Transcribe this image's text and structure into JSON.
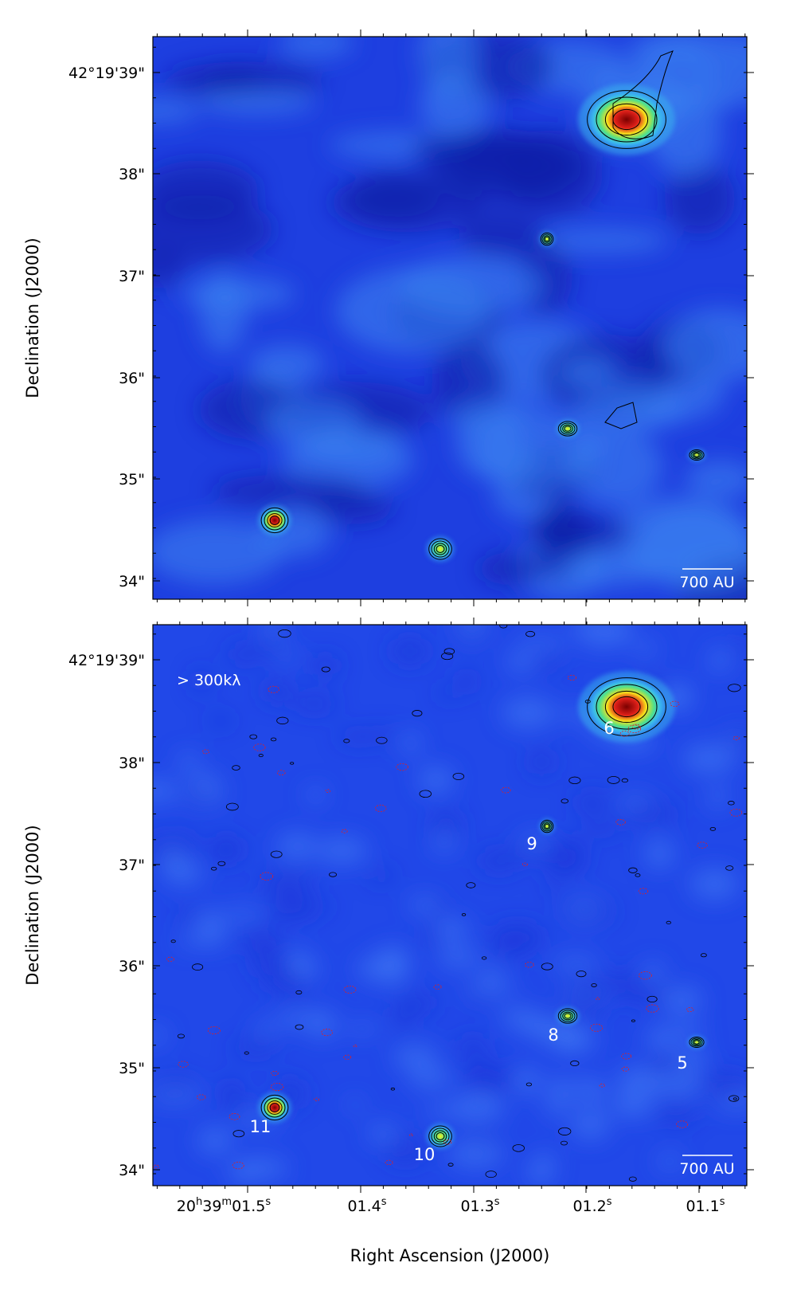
{
  "figure": {
    "y_label": "Declination (J2000)",
    "x_label": "Right Ascension (J2000)",
    "xtick_labels": [
      [
        [
          "20",
          "h"
        ],
        [
          "39",
          "m"
        ],
        [
          "01.5",
          "s"
        ]
      ],
      [
        [
          "01.4",
          "s"
        ]
      ],
      [
        [
          "01.3",
          "s"
        ]
      ],
      [
        [
          "01.2",
          "s"
        ]
      ],
      [
        [
          "01.1",
          "s"
        ]
      ]
    ],
    "panels": [
      {
        "ytick_labels": [
          "42°19'39\"",
          "38\"",
          "37\"",
          "36\"",
          "35\"",
          "34\""
        ],
        "scale_bar": "700 AU"
      },
      {
        "ytick_labels": [
          "42°19'39\"",
          "38\"",
          "37\"",
          "36\"",
          "35\"",
          "34\""
        ],
        "scale_bar": "700 AU",
        "note": "> 300kλ",
        "source_labels": [
          "6",
          "9",
          "8",
          "5",
          "11",
          "10"
        ]
      }
    ]
  }
}
